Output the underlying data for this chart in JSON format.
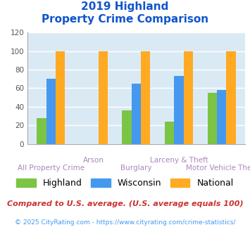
{
  "title_line1": "2019 Highland",
  "title_line2": "Property Crime Comparison",
  "categories": [
    "All Property Crime",
    "Arson",
    "Burglary",
    "Larceny & Theft",
    "Motor Vehicle Theft"
  ],
  "series": {
    "Highland": [
      28,
      0,
      36,
      24,
      55
    ],
    "Wisconsin": [
      70,
      0,
      65,
      73,
      58
    ],
    "National": [
      100,
      100,
      100,
      100,
      100
    ]
  },
  "colors": {
    "Highland": "#7cc444",
    "Wisconsin": "#4499ee",
    "National": "#ffaa22"
  },
  "ylim": [
    0,
    120
  ],
  "yticks": [
    0,
    20,
    40,
    60,
    80,
    100,
    120
  ],
  "plot_bg_color": "#daeaf5",
  "title_color": "#1155cc",
  "xlabel_top_color": "#aa88bb",
  "xlabel_bottom_color": "#aa88bb",
  "footer_text": "Compared to U.S. average. (U.S. average equals 100)",
  "footer_color": "#cc3333",
  "credit_text": "© 2025 CityRating.com - https://www.cityrating.com/crime-statistics/",
  "credit_color": "#4499ee",
  "grid_color": "#ffffff",
  "bar_width": 0.22
}
